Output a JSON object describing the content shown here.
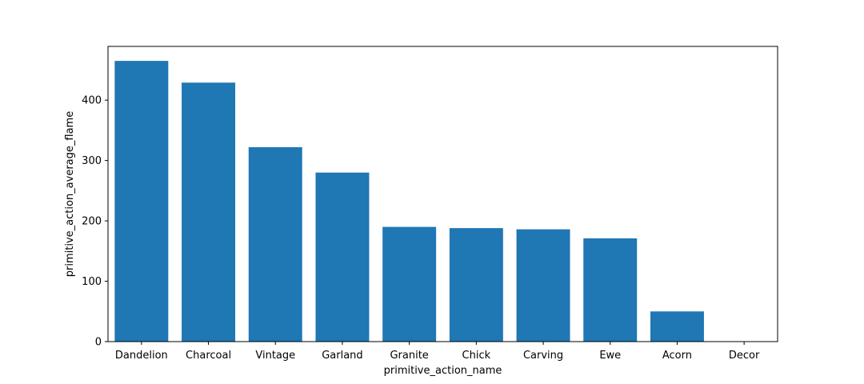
{
  "chart_data": {
    "type": "bar",
    "title": "",
    "xlabel": "primitive_action_name",
    "ylabel": "primitive_action_average_flame",
    "categories": [
      "Dandelion",
      "Charcoal",
      "Vintage",
      "Garland",
      "Granite",
      "Chick",
      "Carving",
      "Ewe",
      "Acorn",
      "Decor"
    ],
    "values": [
      465,
      429,
      322,
      280,
      190,
      188,
      186,
      171,
      50,
      0
    ],
    "ylim": [
      0,
      489
    ],
    "yticks": [
      0,
      100,
      200,
      300,
      400
    ],
    "bar_color": "#1f77b4",
    "grid": false,
    "legend": "none"
  }
}
